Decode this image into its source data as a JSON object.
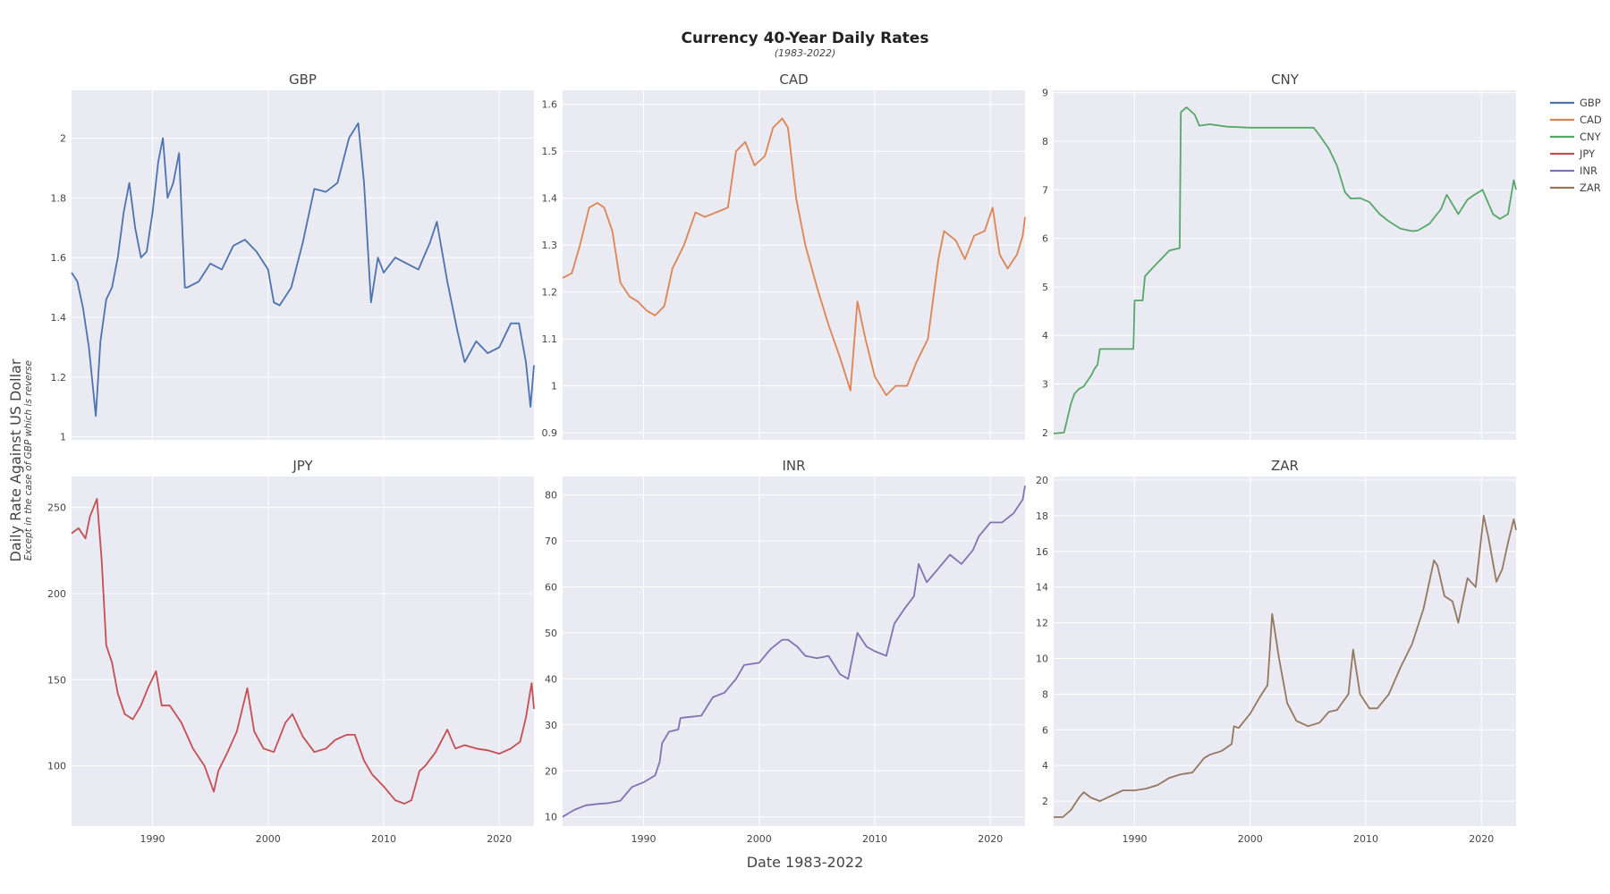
{
  "title": "Currency 40-Year Daily Rates",
  "subtitle": "(1983-2022)",
  "xaxis_title": "Date 1983-2022",
  "yaxis_title": "Daily Rate Against US Dollar",
  "yaxis_subtitle": "Except in the case of GBP which is reverse",
  "legend": [
    {
      "name": "GBP",
      "color": "#4c72b0"
    },
    {
      "name": "CAD",
      "color": "#dd8452"
    },
    {
      "name": "CNY",
      "color": "#55a868"
    },
    {
      "name": "JPY",
      "color": "#c44e52"
    },
    {
      "name": "INR",
      "color": "#8172b3"
    },
    {
      "name": "ZAR",
      "color": "#937860"
    }
  ],
  "chart_data": [
    {
      "type": "line",
      "title": "GBP",
      "color": "#4c72b0",
      "xlim": [
        1983,
        2023
      ],
      "ylim": [
        0.99,
        2.16
      ],
      "x_ticks": [
        1990,
        2000,
        2010,
        2020
      ],
      "show_x_tick_labels": false,
      "y_ticks": [
        {
          "v": 1,
          "label": "1"
        },
        {
          "v": 1.2,
          "label": "1.2"
        },
        {
          "v": 1.4,
          "label": "1.4"
        },
        {
          "v": 1.6,
          "label": "1.6"
        },
        {
          "v": 1.8,
          "label": "1.8"
        },
        {
          "v": 2,
          "label": "2"
        }
      ],
      "x": [
        1983,
        1983.5,
        1984,
        1984.5,
        1985.1,
        1985.5,
        1986,
        1986.5,
        1987,
        1987.5,
        1988,
        1988.5,
        1989,
        1989.5,
        1990,
        1990.5,
        1990.9,
        1991.3,
        1991.8,
        1992.3,
        1992.8,
        1993,
        1994,
        1995,
        1996,
        1997,
        1998,
        1999,
        2000,
        2000.5,
        2001,
        2002,
        2003,
        2004,
        2005,
        2006,
        2007,
        2007.8,
        2008.3,
        2008.9,
        2009.5,
        2010,
        2011,
        2012,
        2013,
        2014,
        2014.6,
        2015.5,
        2016.4,
        2017,
        2018,
        2019,
        2020,
        2021,
        2021.7,
        2022.3,
        2022.7,
        2023
      ],
      "y": [
        1.55,
        1.52,
        1.43,
        1.3,
        1.07,
        1.32,
        1.46,
        1.5,
        1.6,
        1.75,
        1.85,
        1.7,
        1.6,
        1.62,
        1.75,
        1.92,
        2.0,
        1.8,
        1.85,
        1.95,
        1.5,
        1.5,
        1.52,
        1.58,
        1.56,
        1.64,
        1.66,
        1.62,
        1.56,
        1.45,
        1.44,
        1.5,
        1.65,
        1.83,
        1.82,
        1.85,
        2.0,
        2.05,
        1.85,
        1.45,
        1.6,
        1.55,
        1.6,
        1.58,
        1.56,
        1.65,
        1.72,
        1.52,
        1.35,
        1.25,
        1.32,
        1.28,
        1.3,
        1.38,
        1.38,
        1.25,
        1.1,
        1.24
      ]
    },
    {
      "type": "line",
      "title": "CAD",
      "color": "#dd8452",
      "xlim": [
        1983,
        2023
      ],
      "ylim": [
        0.885,
        1.63
      ],
      "x_ticks": [
        1990,
        2000,
        2010,
        2020
      ],
      "show_x_tick_labels": false,
      "y_ticks": [
        {
          "v": 0.9,
          "label": "0.9"
        },
        {
          "v": 1,
          "label": "1"
        },
        {
          "v": 1.1,
          "label": "1.1"
        },
        {
          "v": 1.2,
          "label": "1.2"
        },
        {
          "v": 1.3,
          "label": "1.3"
        },
        {
          "v": 1.4,
          "label": "1.4"
        },
        {
          "v": 1.5,
          "label": "1.5"
        },
        {
          "v": 1.6,
          "label": "1.6"
        }
      ],
      "x": [
        1983,
        1983.8,
        1984.5,
        1985.3,
        1986,
        1986.6,
        1987.3,
        1988,
        1988.8,
        1989.5,
        1990.3,
        1991,
        1991.8,
        1992.5,
        1993.5,
        1994.5,
        1995.3,
        1996.3,
        1997.3,
        1998,
        1998.8,
        1999.6,
        2000.5,
        2001.2,
        2002,
        2002.5,
        2003.2,
        2004,
        2005,
        2006,
        2007,
        2007.9,
        2008.5,
        2009.2,
        2010,
        2011,
        2011.8,
        2012.8,
        2013.6,
        2014.6,
        2015.5,
        2016,
        2017,
        2017.8,
        2018.6,
        2019.5,
        2020.2,
        2020.8,
        2021.5,
        2022.3,
        2022.8,
        2023
      ],
      "y": [
        1.23,
        1.24,
        1.3,
        1.38,
        1.39,
        1.38,
        1.33,
        1.22,
        1.19,
        1.18,
        1.16,
        1.15,
        1.17,
        1.25,
        1.3,
        1.37,
        1.36,
        1.37,
        1.38,
        1.5,
        1.52,
        1.47,
        1.49,
        1.55,
        1.57,
        1.55,
        1.4,
        1.3,
        1.21,
        1.13,
        1.06,
        0.99,
        1.18,
        1.1,
        1.02,
        0.98,
        1.0,
        1.0,
        1.05,
        1.1,
        1.27,
        1.33,
        1.31,
        1.27,
        1.32,
        1.33,
        1.38,
        1.28,
        1.25,
        1.28,
        1.32,
        1.36
      ]
    },
    {
      "type": "line",
      "title": "CNY",
      "color": "#55a868",
      "xlim": [
        1983,
        2023
      ],
      "ylim": [
        1.85,
        9.05
      ],
      "x_ticks": [
        1990,
        2000,
        2010,
        2020
      ],
      "show_x_tick_labels": false,
      "y_ticks": [
        {
          "v": 2,
          "label": "2"
        },
        {
          "v": 3,
          "label": "3"
        },
        {
          "v": 4,
          "label": "4"
        },
        {
          "v": 5,
          "label": "5"
        },
        {
          "v": 6,
          "label": "6"
        },
        {
          "v": 7,
          "label": "7"
        },
        {
          "v": 8,
          "label": "8"
        },
        {
          "v": 9,
          "label": "9"
        }
      ],
      "x": [
        1983,
        1983.9,
        1984.2,
        1984.5,
        1984.8,
        1985.2,
        1985.6,
        1986.3,
        1986.5,
        1986.8,
        1987,
        1989.9,
        1990,
        1990.7,
        1990.9,
        1991.4,
        1992,
        1993,
        1993.9,
        1994,
        1994.5,
        1995.2,
        1995.6,
        1996.5,
        1998,
        2000,
        2002,
        2005.5,
        2006,
        2006.8,
        2007.5,
        2008.2,
        2008.7,
        2009.5,
        2010.3,
        2011.2,
        2012,
        2013,
        2014,
        2014.5,
        2015.5,
        2016.5,
        2017,
        2018,
        2018.8,
        2019.4,
        2020.1,
        2021,
        2021.6,
        2022.3,
        2022.8,
        2023
      ],
      "y": [
        1.98,
        2.0,
        2.3,
        2.6,
        2.8,
        2.9,
        2.95,
        3.2,
        3.3,
        3.4,
        3.72,
        3.72,
        4.72,
        4.72,
        5.22,
        5.35,
        5.5,
        5.75,
        5.8,
        8.6,
        8.7,
        8.55,
        8.32,
        8.35,
        8.3,
        8.28,
        8.28,
        8.28,
        8.12,
        7.85,
        7.5,
        6.95,
        6.82,
        6.83,
        6.75,
        6.5,
        6.35,
        6.2,
        6.15,
        6.16,
        6.3,
        6.6,
        6.9,
        6.5,
        6.8,
        6.9,
        7.0,
        6.5,
        6.4,
        6.5,
        7.2,
        7.0
      ]
    },
    {
      "type": "line",
      "title": "JPY",
      "color": "#c44e52",
      "xlim": [
        1983,
        2023
      ],
      "ylim": [
        65,
        268
      ],
      "x_ticks": [
        1990,
        2000,
        2010,
        2020
      ],
      "show_x_tick_labels": true,
      "y_ticks": [
        {
          "v": 100,
          "label": "100"
        },
        {
          "v": 150,
          "label": "150"
        },
        {
          "v": 200,
          "label": "200"
        },
        {
          "v": 250,
          "label": "250"
        }
      ],
      "x": [
        1983,
        1983.6,
        1984.2,
        1984.6,
        1985.2,
        1985.6,
        1986,
        1986.5,
        1987,
        1987.6,
        1988.3,
        1989,
        1989.6,
        1990.3,
        1990.8,
        1991.5,
        1992.5,
        1993.5,
        1994.5,
        1995.3,
        1995.7,
        1996.5,
        1997.3,
        1998.2,
        1998.8,
        1999.6,
        2000.5,
        2001.5,
        2002.1,
        2003,
        2004,
        2005,
        2005.8,
        2006.8,
        2007.5,
        2008.3,
        2009,
        2010,
        2011,
        2011.8,
        2012.4,
        2013.1,
        2013.6,
        2014.5,
        2015.5,
        2016.2,
        2017,
        2018,
        2019,
        2020,
        2021,
        2021.8,
        2022.3,
        2022.8,
        2023
      ],
      "y": [
        235,
        238,
        232,
        245,
        255,
        220,
        170,
        160,
        142,
        130,
        127,
        135,
        145,
        155,
        135,
        135,
        125,
        110,
        100,
        85,
        97,
        108,
        120,
        145,
        120,
        110,
        108,
        125,
        130,
        117,
        108,
        110,
        115,
        118,
        118,
        103,
        95,
        88,
        80,
        78,
        80,
        97,
        100,
        108,
        121,
        110,
        112,
        110,
        109,
        107,
        110,
        114,
        128,
        148,
        133
      ]
    },
    {
      "type": "line",
      "title": "INR",
      "color": "#8172b3",
      "xlim": [
        1983,
        2023
      ],
      "ylim": [
        8,
        84
      ],
      "x_ticks": [
        1990,
        2000,
        2010,
        2020
      ],
      "show_x_tick_labels": true,
      "y_ticks": [
        {
          "v": 10,
          "label": "10"
        },
        {
          "v": 20,
          "label": "20"
        },
        {
          "v": 30,
          "label": "30"
        },
        {
          "v": 40,
          "label": "40"
        },
        {
          "v": 50,
          "label": "50"
        },
        {
          "v": 60,
          "label": "60"
        },
        {
          "v": 70,
          "label": "70"
        },
        {
          "v": 80,
          "label": "80"
        }
      ],
      "x": [
        1983,
        1984,
        1985,
        1986,
        1987,
        1988,
        1989,
        1990,
        1991,
        1991.4,
        1991.6,
        1992.2,
        1993,
        1993.2,
        1995,
        1996,
        1997,
        1998,
        1998.7,
        2000,
        2001,
        2002,
        2002.5,
        2003.3,
        2004,
        2005,
        2006,
        2007,
        2007.7,
        2008.5,
        2009.3,
        2010,
        2011,
        2011.7,
        2012.5,
        2013.4,
        2013.8,
        2014.5,
        2015.5,
        2016.5,
        2017.5,
        2018.5,
        2019,
        2020,
        2021,
        2022,
        2022.8,
        2023
      ],
      "y": [
        10,
        11.5,
        12.5,
        12.8,
        13,
        13.5,
        16.5,
        17.5,
        19,
        22,
        26,
        28.5,
        29,
        31.5,
        32,
        36,
        37,
        40,
        43,
        43.5,
        46.5,
        48.5,
        48.5,
        47,
        45,
        44.5,
        45,
        41,
        40,
        50,
        47,
        46,
        45,
        52,
        55,
        58,
        65,
        61,
        64,
        67,
        65,
        68,
        71,
        74,
        74,
        76,
        79,
        82
      ]
    },
    {
      "type": "line",
      "title": "ZAR",
      "color": "#937860",
      "xlim": [
        1983,
        2023
      ],
      "ylim": [
        0.6,
        20.2
      ],
      "x_ticks": [
        1990,
        2000,
        2010,
        2020
      ],
      "show_x_tick_labels": true,
      "y_ticks": [
        {
          "v": 2,
          "label": "2"
        },
        {
          "v": 4,
          "label": "4"
        },
        {
          "v": 6,
          "label": "6"
        },
        {
          "v": 8,
          "label": "8"
        },
        {
          "v": 10,
          "label": "10"
        },
        {
          "v": 12,
          "label": "12"
        },
        {
          "v": 14,
          "label": "14"
        },
        {
          "v": 16,
          "label": "16"
        },
        {
          "v": 18,
          "label": "18"
        },
        {
          "v": 20,
          "label": "20"
        }
      ],
      "x": [
        1983,
        1983.8,
        1984.5,
        1985.2,
        1985.6,
        1986.2,
        1987,
        1988,
        1989,
        1990,
        1991,
        1992,
        1993,
        1994,
        1995,
        1996,
        1996.5,
        1997.5,
        1998.4,
        1998.6,
        1999,
        2000,
        2000.8,
        2001.5,
        2001.9,
        2002.5,
        2003.2,
        2004,
        2005,
        2006,
        2006.8,
        2007.5,
        2008.5,
        2008.9,
        2009.5,
        2010.3,
        2011,
        2012,
        2013,
        2014,
        2015,
        2015.9,
        2016.2,
        2016.8,
        2017.5,
        2018,
        2018.8,
        2019.5,
        2020.2,
        2020.6,
        2021.3,
        2021.8,
        2022.3,
        2022.8,
        2023
      ],
      "y": [
        1.1,
        1.1,
        1.5,
        2.2,
        2.5,
        2.2,
        2.0,
        2.3,
        2.6,
        2.6,
        2.7,
        2.9,
        3.3,
        3.5,
        3.6,
        4.4,
        4.6,
        4.8,
        5.2,
        6.2,
        6.1,
        6.9,
        7.8,
        8.5,
        12.5,
        10.0,
        7.5,
        6.5,
        6.2,
        6.4,
        7.0,
        7.1,
        8.0,
        10.5,
        8.0,
        7.2,
        7.2,
        8.0,
        9.5,
        10.8,
        12.8,
        15.5,
        15.2,
        13.5,
        13.2,
        12.0,
        14.5,
        14.0,
        18.0,
        16.8,
        14.3,
        15.0,
        16.5,
        17.8,
        17.2
      ]
    }
  ]
}
